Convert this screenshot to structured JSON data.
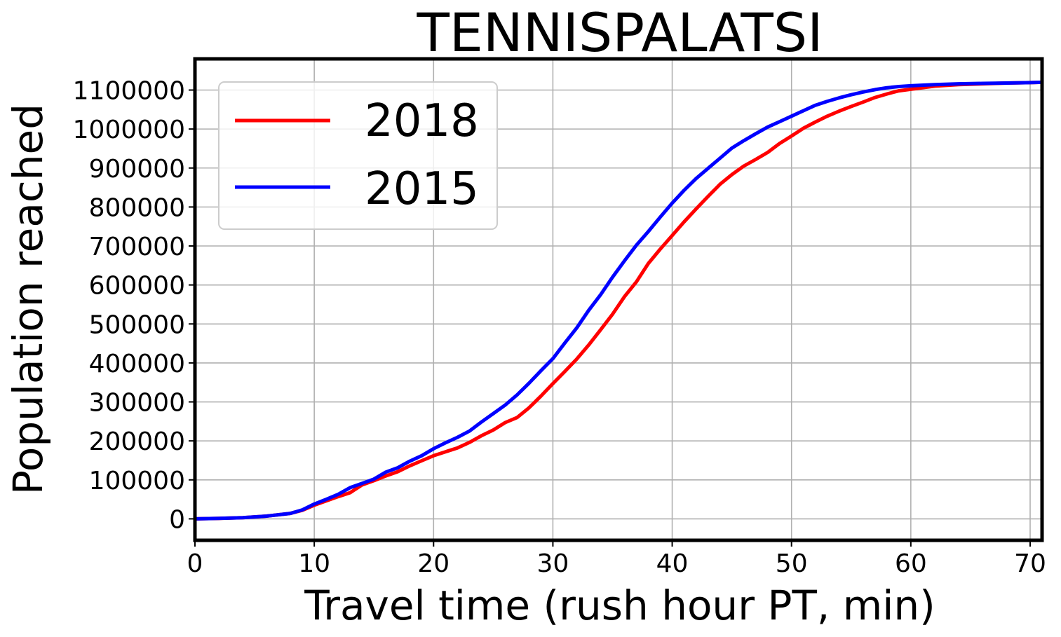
{
  "chart_data": {
    "type": "line",
    "title": "TENNISPALATSI",
    "xlabel": "Travel time (rush hour PT, min)",
    "ylabel": "Population reached",
    "xlim": [
      0,
      71
    ],
    "ylim": [
      -55000,
      1180000
    ],
    "xticks": [
      0,
      10,
      20,
      30,
      40,
      50,
      60,
      70
    ],
    "yticks": [
      0,
      100000,
      200000,
      300000,
      400000,
      500000,
      600000,
      700000,
      800000,
      900000,
      1000000,
      1100000
    ],
    "grid": true,
    "legend_position": "top-left",
    "series": [
      {
        "name": "2018",
        "color": "#ff0000",
        "x": [
          0,
          2,
          4,
          6,
          8,
          9,
          10,
          11,
          12,
          13,
          14,
          15,
          16,
          17,
          18,
          19,
          20,
          21,
          22,
          23,
          24,
          25,
          26,
          27,
          28,
          29,
          30,
          31,
          32,
          33,
          34,
          35,
          36,
          37,
          38,
          39,
          40,
          41,
          42,
          43,
          44,
          45,
          46,
          47,
          48,
          49,
          50,
          51,
          52,
          53,
          54,
          55,
          56,
          57,
          58,
          59,
          60,
          62,
          64,
          66,
          68,
          70,
          71
        ],
        "y": [
          0,
          1000,
          3000,
          7000,
          14000,
          22000,
          35000,
          46000,
          57000,
          67000,
          87000,
          98000,
          110000,
          121000,
          136000,
          149000,
          162000,
          172000,
          182000,
          196000,
          213000,
          228000,
          247000,
          260000,
          285000,
          315000,
          347000,
          378000,
          410000,
          446000,
          485000,
          525000,
          570000,
          608000,
          655000,
          692000,
          727000,
          762000,
          795000,
          827000,
          858000,
          883000,
          905000,
          922000,
          940000,
          963000,
          982000,
          1002000,
          1018000,
          1033000,
          1046000,
          1058000,
          1069000,
          1081000,
          1090000,
          1098000,
          1102000,
          1110000,
          1114000,
          1116000,
          1118000,
          1119000,
          1120000
        ]
      },
      {
        "name": "2015",
        "color": "#0000ff",
        "x": [
          0,
          2,
          4,
          6,
          8,
          9,
          10,
          11,
          12,
          13,
          14,
          15,
          16,
          17,
          18,
          19,
          20,
          21,
          22,
          23,
          24,
          25,
          26,
          27,
          28,
          29,
          30,
          31,
          32,
          33,
          34,
          35,
          36,
          37,
          38,
          39,
          40,
          41,
          42,
          43,
          44,
          45,
          46,
          47,
          48,
          49,
          50,
          51,
          52,
          53,
          54,
          55,
          56,
          57,
          58,
          59,
          60,
          62,
          64,
          66,
          68,
          70,
          71
        ],
        "y": [
          0,
          1000,
          3000,
          7000,
          14000,
          23000,
          38000,
          50000,
          63000,
          80000,
          91000,
          102000,
          120000,
          131000,
          148000,
          162000,
          180000,
          195000,
          209000,
          225000,
          248000,
          270000,
          292000,
          318000,
          348000,
          380000,
          411000,
          451000,
          490000,
          535000,
          575000,
          620000,
          662000,
          702000,
          737000,
          774000,
          810000,
          843000,
          873000,
          899000,
          925000,
          951000,
          970000,
          988000,
          1005000,
          1019000,
          1033000,
          1047000,
          1061000,
          1071000,
          1080000,
          1088000,
          1095000,
          1101000,
          1106000,
          1109000,
          1111000,
          1114000,
          1116000,
          1117000,
          1118000,
          1119000,
          1120000
        ]
      }
    ]
  }
}
